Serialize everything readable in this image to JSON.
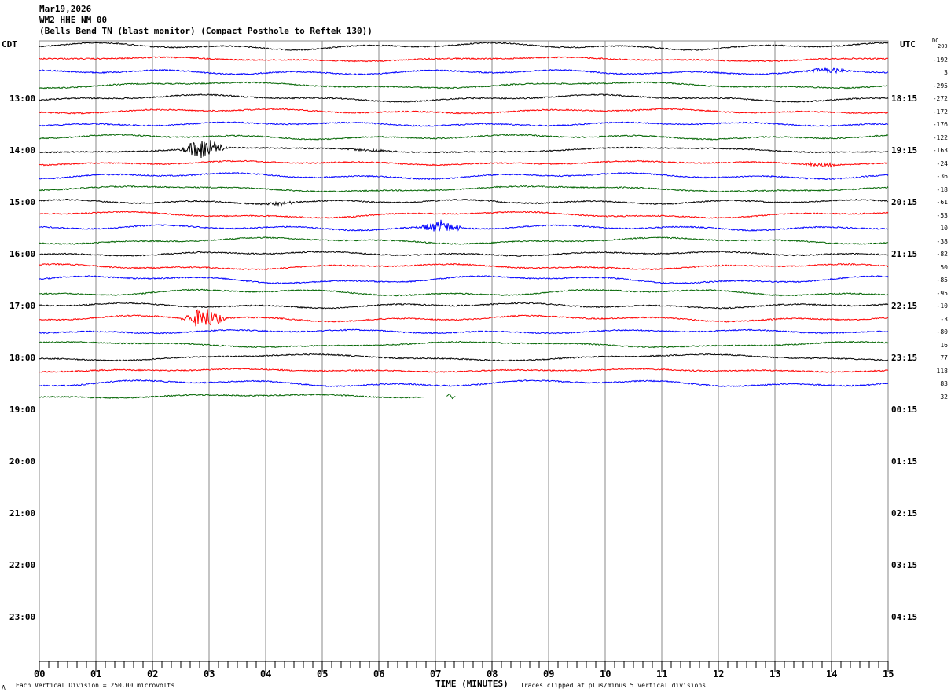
{
  "header": {
    "date": "Mar19,2026",
    "station": "WM2 HHE NM 00",
    "description": "(Bells Bend TN (blast monitor) (Compact Posthole to Reftek 130))"
  },
  "left_axis_title": "CDT",
  "right_axis_title": "UTC",
  "dc_title": "DC",
  "footer": {
    "scale_note": "Each Vertical Division =  250.00 microvolts",
    "xlabel": "TIME (MINUTES)",
    "clip_note": "Traces clipped at plus/minus 5 vertical divisions",
    "corner_mark": "Λ"
  },
  "chart_data": {
    "type": "line",
    "subtype": "helicorder",
    "xlabel": "TIME (MINUTES)",
    "xlim": [
      0,
      15
    ],
    "x_ticks": [
      "00",
      "01",
      "02",
      "03",
      "04",
      "05",
      "06",
      "07",
      "08",
      "09",
      "10",
      "11",
      "12",
      "13",
      "14",
      "15"
    ],
    "left_hour_labels": [
      "13:00",
      "14:00",
      "15:00",
      "16:00",
      "17:00",
      "18:00",
      "19:00",
      "20:00",
      "21:00",
      "22:00",
      "23:00"
    ],
    "right_hour_labels": [
      "18:15",
      "19:15",
      "20:15",
      "21:15",
      "22:15",
      "23:15",
      "00:15",
      "01:15",
      "02:15",
      "03:15",
      "04:15"
    ],
    "trace_colors": [
      "#000000",
      "#ff0000",
      "#0000ff",
      "#006400"
    ],
    "dc_offsets": [
      "200",
      "-192",
      "3",
      "-295",
      "-272",
      "-172",
      "-176",
      "-122",
      "-163",
      "-24",
      "-36",
      "-18",
      "-61",
      "-53",
      "10",
      "-38",
      "-82",
      "50",
      "-85",
      "-95",
      "-10",
      "-3",
      "-80",
      "16",
      "77",
      "118",
      "83",
      "32"
    ],
    "trace_count": 28,
    "last_trace_end_minute": 6.8,
    "events": [
      {
        "trace": 8,
        "minute": 2.9,
        "amplitude": 5
      },
      {
        "trace": 21,
        "minute": 2.9,
        "amplitude": 5
      },
      {
        "trace": 14,
        "minute": 7.1,
        "amplitude": 3
      },
      {
        "trace": 2,
        "minute": 13.9,
        "amplitude": 1.5
      },
      {
        "trace": 9,
        "minute": 13.8,
        "amplitude": 1
      },
      {
        "trace": 12,
        "minute": 4.25,
        "amplitude": 0.8
      },
      {
        "trace": 8,
        "minute": 5.9,
        "amplitude": 0.8
      }
    ]
  }
}
